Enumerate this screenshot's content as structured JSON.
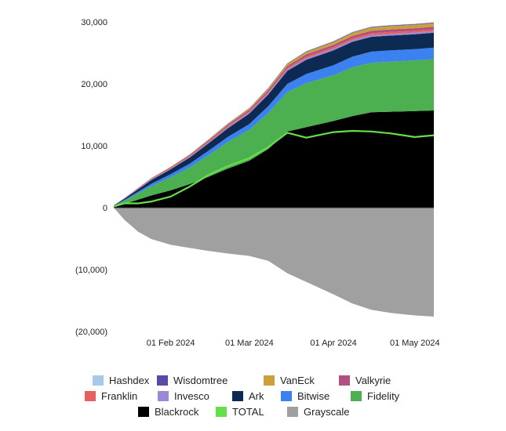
{
  "chart_data": {
    "type": "area",
    "stacked": true,
    "title": "",
    "xlabel": "",
    "ylabel": "",
    "ylim": [
      -20000,
      30000
    ],
    "y_ticks": [
      {
        "value": 30000,
        "label": "30,000"
      },
      {
        "value": 20000,
        "label": "20,000"
      },
      {
        "value": 10000,
        "label": "10,000"
      },
      {
        "value": 0,
        "label": "0"
      },
      {
        "value": -10000,
        "label": "(10,000)"
      },
      {
        "value": -20000,
        "label": "(20,000)"
      }
    ],
    "x_ticks": [
      {
        "date": "2024-02-01",
        "label": "01 Feb 2024"
      },
      {
        "date": "2024-03-01",
        "label": "01 Mar 2024"
      },
      {
        "date": "2024-04-01",
        "label": "01 Apr 2024"
      },
      {
        "date": "2024-05-01",
        "label": "01 May 2024"
      }
    ],
    "grid": false,
    "legend_position": "bottom",
    "x": [
      "2024-01-11",
      "2024-01-15",
      "2024-01-20",
      "2024-01-25",
      "2024-02-01",
      "2024-02-08",
      "2024-02-15",
      "2024-02-22",
      "2024-03-01",
      "2024-03-08",
      "2024-03-15",
      "2024-03-22",
      "2024-04-01",
      "2024-04-08",
      "2024-04-15",
      "2024-04-22",
      "2024-05-01",
      "2024-05-08"
    ],
    "stack_order": [
      "Blackrock",
      "Fidelity",
      "Bitwise",
      "Ark",
      "Invesco",
      "Franklin",
      "Valkyrie",
      "VanEck",
      "Wisdomtree",
      "Hashdex"
    ],
    "series": [
      {
        "name": "Blackrock",
        "color": "#000000",
        "values": [
          150,
          600,
          1300,
          2000,
          2800,
          3800,
          5000,
          6300,
          7600,
          9500,
          12300,
          13000,
          14000,
          14800,
          15400,
          15500,
          15600,
          15700
        ]
      },
      {
        "name": "Fidelity",
        "color": "#4caf50",
        "values": [
          120,
          500,
          1000,
          1500,
          2100,
          2700,
          3500,
          4300,
          5000,
          5800,
          6400,
          7100,
          7400,
          7900,
          8000,
          8100,
          8200,
          8300
        ]
      },
      {
        "name": "Bitwise",
        "color": "#3b82f0",
        "values": [
          40,
          150,
          280,
          400,
          500,
          600,
          700,
          800,
          900,
          1100,
          1300,
          1500,
          1600,
          1700,
          1800,
          1800,
          1800,
          1850
        ]
      },
      {
        "name": "Ark",
        "color": "#0d2b52",
        "values": [
          40,
          200,
          400,
          600,
          800,
          1000,
          1200,
          1400,
          1700,
          1900,
          2100,
          2300,
          2400,
          2400,
          2400,
          2400,
          2400,
          2400
        ]
      },
      {
        "name": "Invesco",
        "color": "#9b88d6",
        "values": [
          15,
          40,
          60,
          80,
          100,
          120,
          140,
          170,
          190,
          210,
          240,
          250,
          260,
          270,
          280,
          280,
          280,
          280
        ]
      },
      {
        "name": "Franklin",
        "color": "#e66060",
        "values": [
          10,
          30,
          50,
          60,
          80,
          100,
          140,
          160,
          180,
          210,
          230,
          250,
          260,
          280,
          300,
          300,
          300,
          300
        ]
      },
      {
        "name": "Valkyrie",
        "color": "#b05080",
        "values": [
          10,
          40,
          70,
          100,
          130,
          160,
          200,
          230,
          260,
          300,
          330,
          360,
          380,
          390,
          400,
          400,
          400,
          400
        ]
      },
      {
        "name": "VanEck",
        "color": "#c9a03a",
        "values": [
          5,
          20,
          40,
          60,
          80,
          100,
          130,
          160,
          200,
          260,
          330,
          400,
          460,
          500,
          530,
          550,
          560,
          570
        ]
      },
      {
        "name": "Wisdomtree",
        "color": "#5a4aa8",
        "values": [
          2,
          8,
          12,
          18,
          25,
          30,
          40,
          50,
          60,
          70,
          80,
          90,
          100,
          105,
          110,
          110,
          110,
          110
        ]
      },
      {
        "name": "Hashdex",
        "color": "#a7c9ea",
        "values": [
          2,
          5,
          8,
          12,
          16,
          20,
          25,
          30,
          35,
          40,
          45,
          50,
          55,
          60,
          60,
          60,
          60,
          60
        ]
      },
      {
        "name": "Grayscale",
        "color": "#a0a0a0",
        "values": [
          0,
          -2000,
          -3900,
          -5100,
          -6000,
          -6500,
          -7000,
          -7400,
          -7800,
          -8600,
          -10600,
          -12000,
          -14000,
          -15500,
          -16500,
          -17000,
          -17400,
          -17600
        ]
      },
      {
        "name": "TOTAL",
        "color": "#66e04a",
        "type": "line",
        "values": [
          200,
          700,
          700,
          1000,
          1800,
          3400,
          5300,
          6700,
          8000,
          9800,
          12100,
          11300,
          12200,
          12400,
          12300,
          12000,
          11400,
          11700
        ]
      }
    ],
    "legend": [
      {
        "name": "Hashdex",
        "color": "#a7c9ea"
      },
      {
        "name": "Wisdomtree",
        "color": "#5a4aa8"
      },
      {
        "name": "VanEck",
        "color": "#c9a03a"
      },
      {
        "name": "Valkyrie",
        "color": "#b05080"
      },
      {
        "name": "Franklin",
        "color": "#e66060"
      },
      {
        "name": "Invesco",
        "color": "#9b88d6"
      },
      {
        "name": "Ark",
        "color": "#0d2b52"
      },
      {
        "name": "Bitwise",
        "color": "#3b82f0"
      },
      {
        "name": "Fidelity",
        "color": "#4caf50"
      },
      {
        "name": "Blackrock",
        "color": "#000000"
      },
      {
        "name": "TOTAL",
        "color": "#66e04a"
      },
      {
        "name": "Grayscale",
        "color": "#a0a0a0"
      }
    ]
  }
}
